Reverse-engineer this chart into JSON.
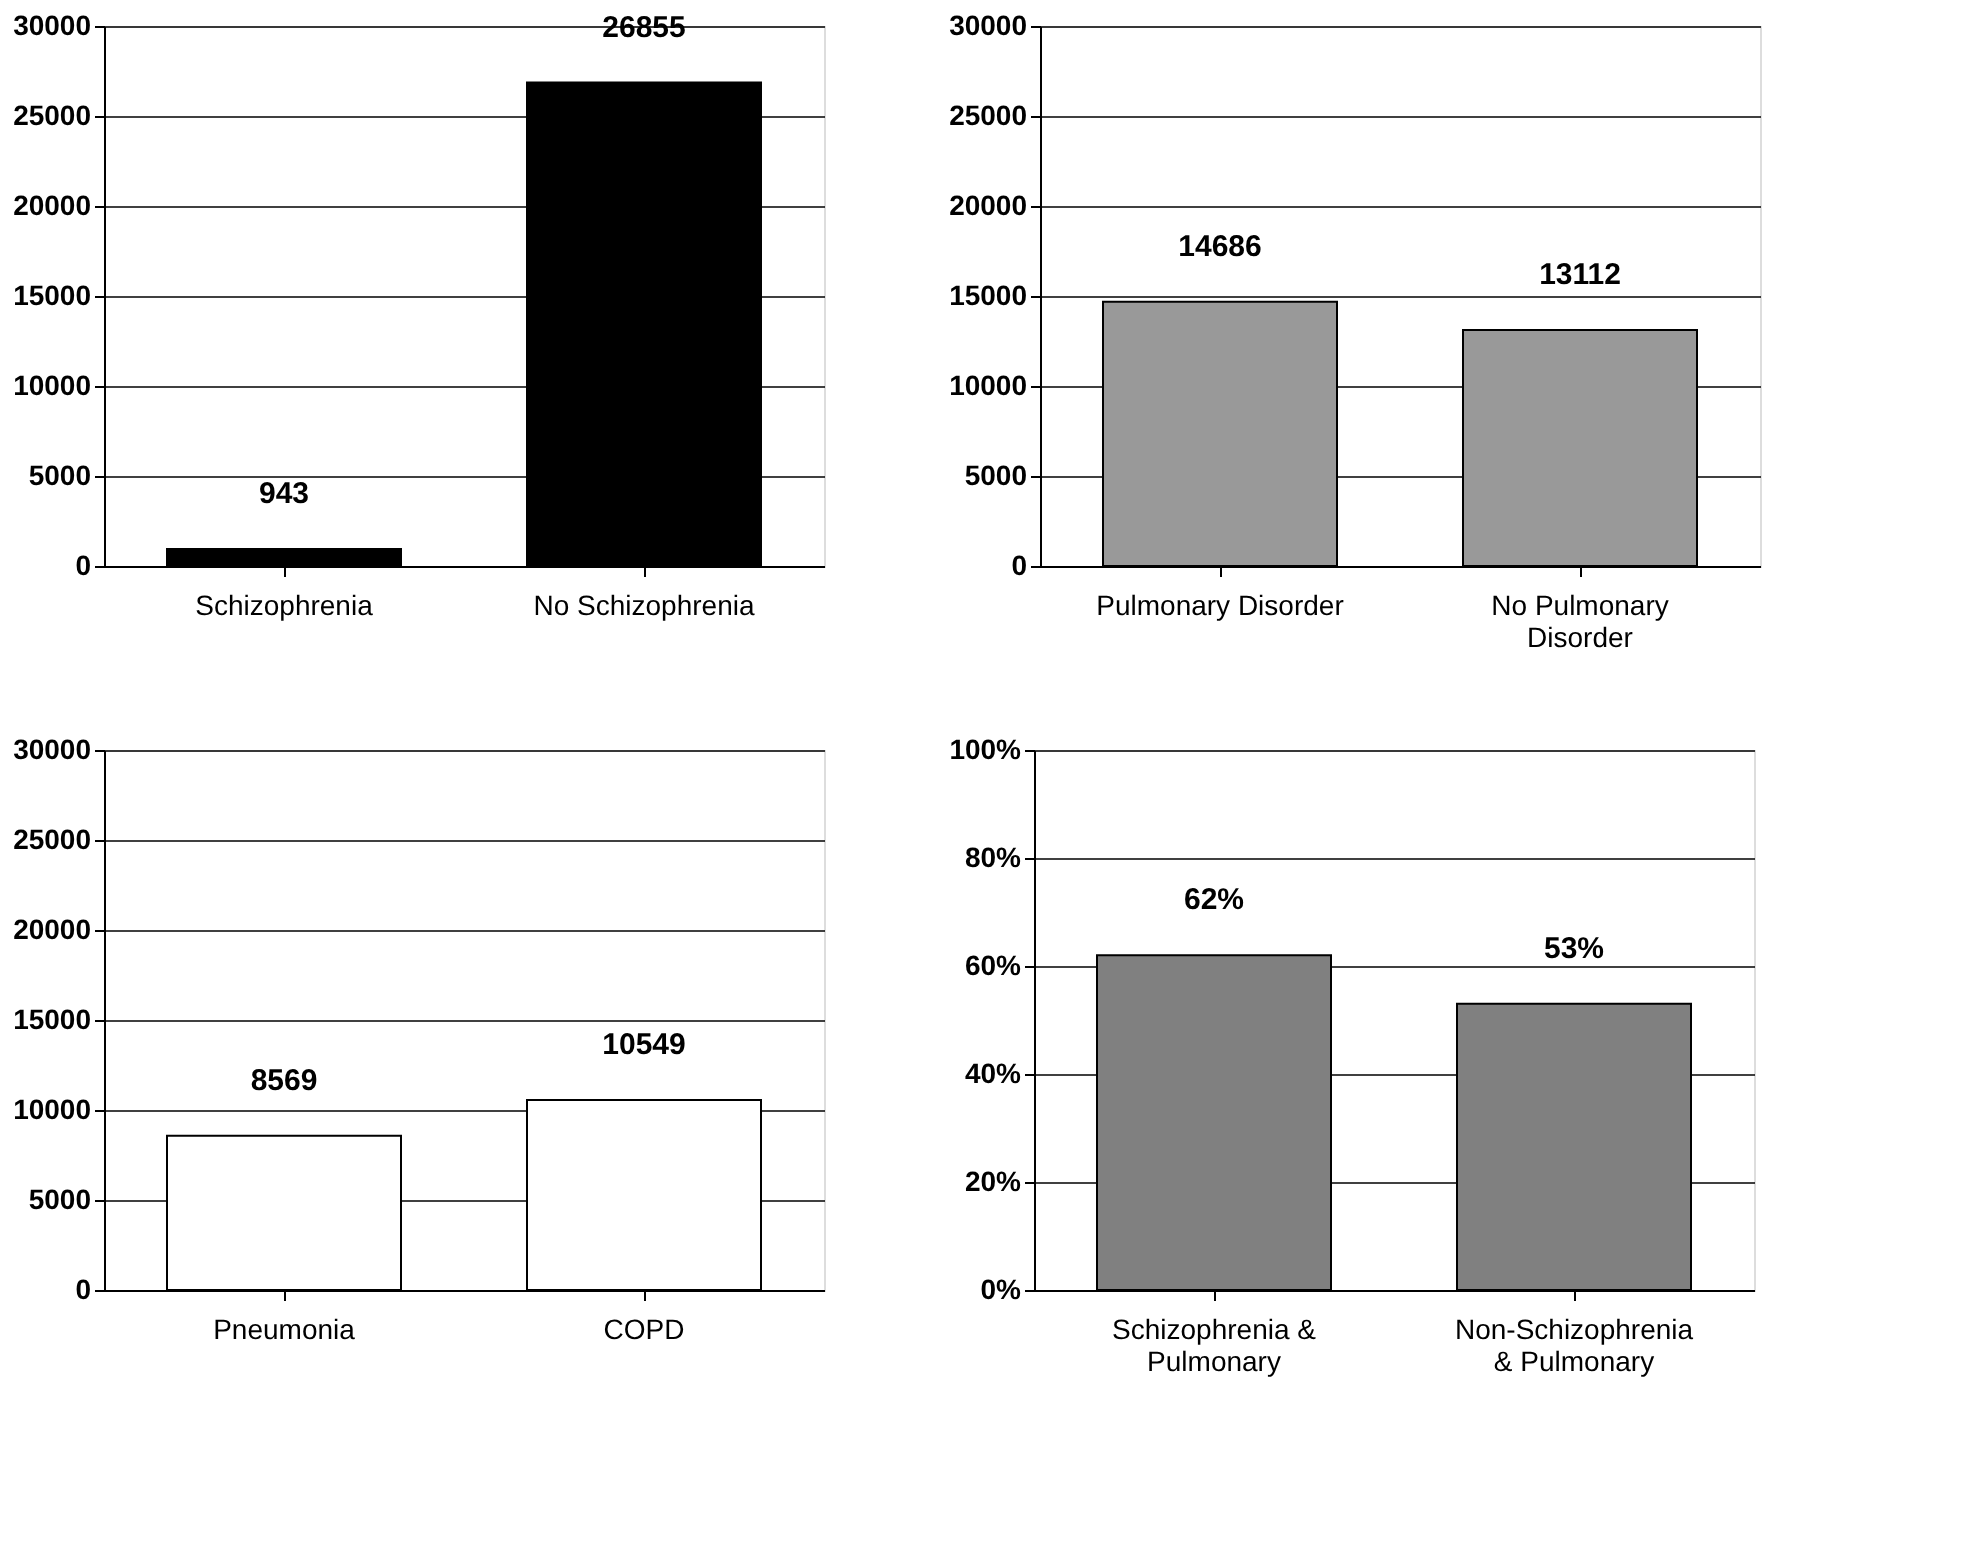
{
  "chart_data": [
    {
      "type": "bar",
      "categories": [
        "Schizophrenia",
        "No Schizophrenia"
      ],
      "values": [
        943,
        26855
      ],
      "color": "#000000",
      "ylim": [
        0,
        30000
      ],
      "yticks": [
        0,
        5000,
        10000,
        15000,
        20000,
        25000,
        30000
      ],
      "grid": "y",
      "data_labels": true
    },
    {
      "type": "bar",
      "categories": [
        "Pulmonary Disorder",
        "No Pulmonary Disorder"
      ],
      "values": [
        14686,
        13112
      ],
      "color": "#999999",
      "ylim": [
        0,
        30000
      ],
      "yticks": [
        0,
        5000,
        10000,
        15000,
        20000,
        25000,
        30000
      ],
      "grid": "y",
      "data_labels": true
    },
    {
      "type": "bar",
      "categories": [
        "Pneumonia",
        "COPD"
      ],
      "values": [
        8569,
        10549
      ],
      "color": "#ffffff",
      "ylim": [
        0,
        30000
      ],
      "yticks": [
        0,
        5000,
        10000,
        15000,
        20000,
        25000,
        30000
      ],
      "grid": "y",
      "data_labels": true
    },
    {
      "type": "bar",
      "categories": [
        "Schizophrenia & Pulmonary",
        "Non-Schizophrenia & Pulmonary"
      ],
      "values": [
        62,
        53
      ],
      "color": "#808080",
      "ylim": [
        0,
        100
      ],
      "yticks": [
        {
          "value": 0,
          "label": "0%"
        },
        {
          "value": 20,
          "label": "20%"
        },
        {
          "value": 40,
          "label": "40%"
        },
        {
          "value": 60,
          "label": "60%"
        },
        {
          "value": 80,
          "label": "80%"
        },
        {
          "value": 100,
          "label": "100%"
        }
      ],
      "grid": "y",
      "value_labels": [
        "62%",
        "53%"
      ]
    }
  ]
}
